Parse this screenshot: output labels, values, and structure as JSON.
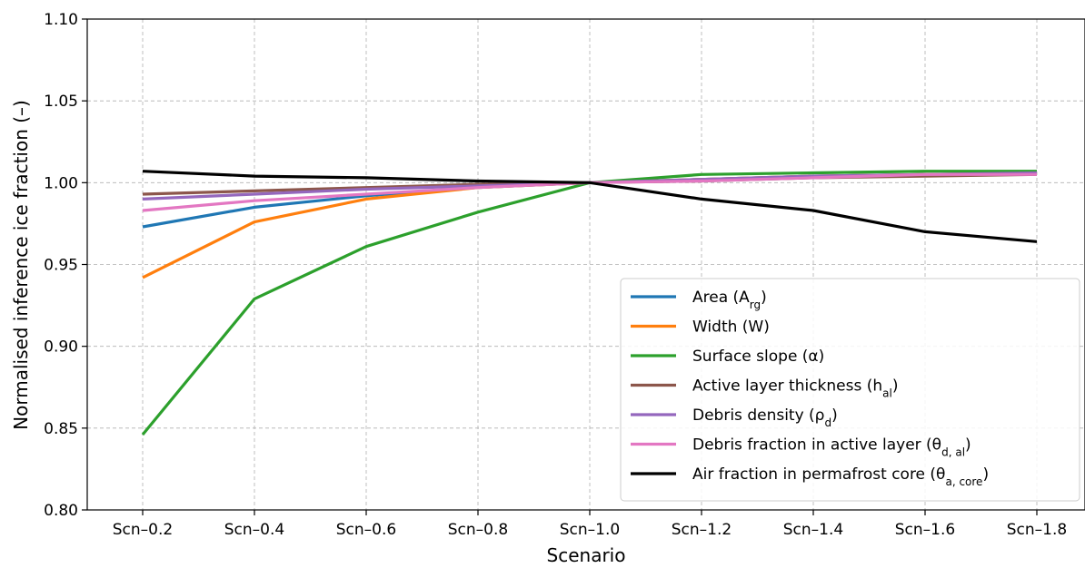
{
  "chart_data": {
    "type": "line",
    "xlabel": "Scenario",
    "ylabel": "Normalised inference ice fraction (–)",
    "categories": [
      "Scn–0.2",
      "Scn–0.4",
      "Scn–0.6",
      "Scn–0.8",
      "Scn–1.0",
      "Scn–1.2",
      "Scn–1.4",
      "Scn–1.6",
      "Scn–1.8"
    ],
    "ylim": [
      0.8,
      1.1
    ],
    "yticks": [
      "0.80",
      "0.85",
      "0.90",
      "0.95",
      "1.00",
      "1.05",
      "1.10"
    ],
    "grid": true,
    "legend_position": "lower-right",
    "series": [
      {
        "name": "Area (A",
        "sub": "rg",
        "suffix": ")",
        "color": "#1f77b4",
        "values": [
          0.973,
          0.985,
          0.992,
          0.997,
          1.0,
          1.002,
          1.004,
          1.005,
          1.006
        ]
      },
      {
        "name": "Width (W)",
        "sub": "",
        "suffix": "",
        "color": "#ff7f0e",
        "values": [
          0.942,
          0.976,
          0.99,
          0.997,
          1.0,
          1.002,
          1.004,
          1.005,
          1.006
        ]
      },
      {
        "name": "Surface slope (α)",
        "sub": "",
        "suffix": "",
        "color": "#2ca02c",
        "values": [
          0.846,
          0.929,
          0.961,
          0.982,
          1.0,
          1.005,
          1.006,
          1.007,
          1.007
        ]
      },
      {
        "name": "Active layer thickness (h",
        "sub": "al",
        "suffix": ")",
        "color": "#8c564b",
        "values": [
          0.993,
          0.995,
          0.997,
          0.999,
          1.0,
          1.001,
          1.003,
          1.004,
          1.005
        ]
      },
      {
        "name": "Debris density (ρ",
        "sub": "d",
        "suffix": ")",
        "color": "#9467bd",
        "values": [
          0.99,
          0.993,
          0.996,
          0.998,
          1.0,
          1.002,
          1.004,
          1.005,
          1.006
        ]
      },
      {
        "name": "Debris fraction in active layer (θ",
        "sub": "d, al",
        "suffix": ")",
        "color": "#e377c2",
        "values": [
          0.983,
          0.989,
          0.993,
          0.997,
          1.0,
          1.001,
          1.003,
          1.005,
          1.005
        ]
      },
      {
        "name": "Air fraction in permafrost core (θ",
        "sub": "a, core",
        "suffix": ")",
        "color": "#000000",
        "values": [
          1.007,
          1.004,
          1.003,
          1.001,
          1.0,
          0.99,
          0.983,
          0.97,
          0.964
        ]
      }
    ]
  }
}
